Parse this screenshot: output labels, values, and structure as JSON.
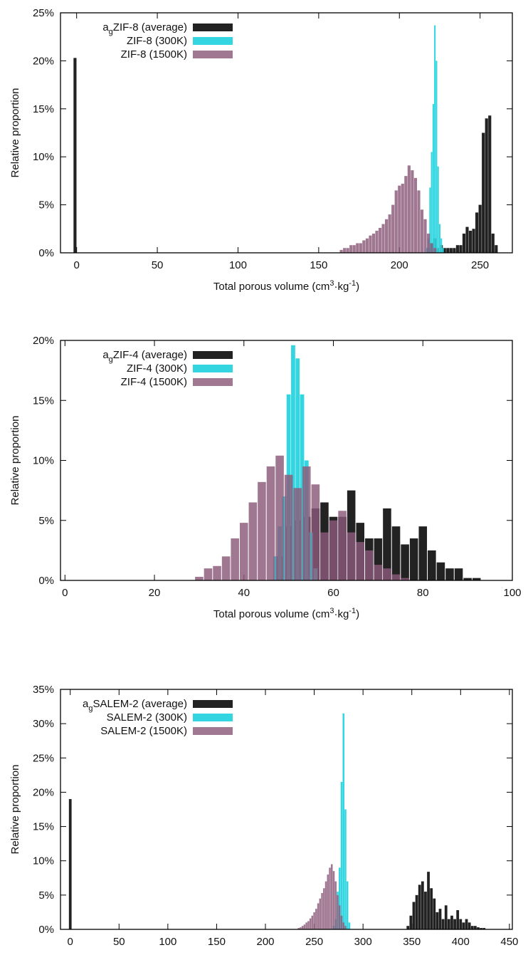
{
  "chart_data": [
    {
      "type": "bar",
      "x_label": "Total porous volume (cm3·kg-1)",
      "y_label": "Relative proportion",
      "xlim": [
        -10,
        270
      ],
      "ylim": [
        0,
        25
      ],
      "xticks": [
        0,
        50,
        100,
        150,
        200,
        250
      ],
      "yticks": [
        {
          "value": 0,
          "label": "0%"
        },
        {
          "value": 5,
          "label": "5%"
        },
        {
          "value": 10,
          "label": "10%"
        },
        {
          "value": 15,
          "label": "15%"
        },
        {
          "value": 20,
          "label": "20%"
        },
        {
          "value": 25,
          "label": "25%"
        }
      ],
      "legend": "upper left",
      "series": [
        {
          "name": "agZIF-8 (average)",
          "color": "#222222",
          "x": [
            -1,
            218,
            220,
            222,
            224,
            226,
            228,
            230,
            232,
            234,
            236,
            238,
            240,
            242,
            244,
            246,
            248,
            250,
            252,
            254,
            256,
            258,
            260
          ],
          "values": [
            20.3,
            0.5,
            1.0,
            1.5,
            0.5,
            0.8,
            0.5,
            0.5,
            0.5,
            0.5,
            0.8,
            0.8,
            2.0,
            2.7,
            2.3,
            2.5,
            4.2,
            5.0,
            12.5,
            14.0,
            14.3,
            2.0,
            0.8
          ]
        },
        {
          "name": "ZIF-8 (300K)",
          "color": "#33d6e0",
          "x": [
            217,
            218,
            219,
            220,
            221,
            222,
            223,
            224,
            225,
            226,
            227
          ],
          "values": [
            0.5,
            1.5,
            6.8,
            10.5,
            15.5,
            23.7,
            20.0,
            9.0,
            3.0,
            1.5,
            0.5
          ]
        },
        {
          "name": "ZIF-8 (1500K)",
          "color": "#8c5a7a",
          "x": [
            164,
            166,
            168,
            170,
            172,
            174,
            176,
            178,
            180,
            182,
            184,
            186,
            188,
            190,
            192,
            194,
            196,
            198,
            200,
            202,
            204,
            206,
            208,
            210,
            212,
            214,
            216,
            218,
            220,
            222
          ],
          "values": [
            0.3,
            0.5,
            0.5,
            0.8,
            0.8,
            1.0,
            1.0,
            1.3,
            1.5,
            1.8,
            2.0,
            2.3,
            2.6,
            3.0,
            3.5,
            4.0,
            5.0,
            6.5,
            7.0,
            7.2,
            8.0,
            9.1,
            8.6,
            7.8,
            6.5,
            4.5,
            3.5,
            2.0,
            1.0,
            0.5
          ]
        }
      ]
    },
    {
      "type": "bar",
      "x_label": "Total porous volume (cm3·kg-1)",
      "y_label": "Relative proportion",
      "xlim": [
        -1,
        100
      ],
      "ylim": [
        0,
        20
      ],
      "xticks": [
        0,
        20,
        40,
        60,
        80,
        100
      ],
      "yticks": [
        {
          "value": 0,
          "label": "0%"
        },
        {
          "value": 5,
          "label": "5%"
        },
        {
          "value": 10,
          "label": "10%"
        },
        {
          "value": 15,
          "label": "15%"
        },
        {
          "value": 20,
          "label": "20%"
        }
      ],
      "legend": "upper left",
      "series": [
        {
          "name": "agZIF-4 (average)",
          "color": "#222222",
          "x": [
            48,
            50,
            52,
            54,
            56,
            58,
            60,
            62,
            64,
            66,
            68,
            70,
            72,
            74,
            76,
            78,
            80,
            82,
            84,
            86,
            88,
            90,
            92
          ],
          "values": [
            2.0,
            4.5,
            5.0,
            5.3,
            6.0,
            6.5,
            5.3,
            5.3,
            7.5,
            4.8,
            3.5,
            3.5,
            6.0,
            4.5,
            3.0,
            3.5,
            4.5,
            2.5,
            1.5,
            1.0,
            1.0,
            0.2,
            0.2
          ]
        },
        {
          "name": "ZIF-4 (300K)",
          "color": "#33d6e0",
          "x": [
            47,
            48,
            49,
            50,
            51,
            52,
            53,
            54,
            55,
            56
          ],
          "values": [
            2.0,
            4.5,
            7.0,
            15.5,
            19.6,
            18.5,
            15.5,
            10.0,
            4.0,
            1.0
          ]
        },
        {
          "name": "ZIF-4 (1500K)",
          "color": "#8c5a7a",
          "x": [
            30,
            32,
            34,
            36,
            38,
            40,
            42,
            44,
            46,
            48,
            50,
            52,
            54,
            56,
            58,
            60,
            62,
            64,
            66,
            68,
            70,
            72,
            74,
            76
          ],
          "values": [
            0.3,
            1.0,
            1.2,
            2.0,
            3.5,
            4.8,
            6.5,
            8.2,
            9.5,
            10.4,
            8.8,
            7.7,
            9.5,
            8.0,
            4.0,
            5.0,
            5.8,
            4.0,
            3.2,
            2.5,
            1.3,
            1.0,
            0.5,
            0.2
          ]
        }
      ]
    },
    {
      "type": "bar",
      "x_label": "Total porous volume (cm3·kg-1)",
      "y_label": "Relative proportion",
      "xlim": [
        -10,
        453
      ],
      "ylim": [
        0,
        35
      ],
      "xticks": [
        0,
        50,
        100,
        150,
        200,
        250,
        300,
        350,
        400,
        450
      ],
      "yticks": [
        {
          "value": 0,
          "label": "0%"
        },
        {
          "value": 5,
          "label": "5%"
        },
        {
          "value": 10,
          "label": "10%"
        },
        {
          "value": 15,
          "label": "15%"
        },
        {
          "value": 20,
          "label": "20%"
        },
        {
          "value": 25,
          "label": "25%"
        },
        {
          "value": 30,
          "label": "30%"
        },
        {
          "value": 35,
          "label": "35%"
        }
      ],
      "legend": "upper left",
      "series": [
        {
          "name": "agSALEM-2 (average)",
          "color": "#222222",
          "x": [
            0,
            346,
            349,
            352,
            355,
            358,
            361,
            364,
            367,
            370,
            373,
            376,
            379,
            382,
            385,
            388,
            391,
            394,
            397,
            400,
            403,
            406,
            409,
            412,
            415,
            418,
            421,
            424
          ],
          "values": [
            19.0,
            0.5,
            2.0,
            4.0,
            5.0,
            6.5,
            7.0,
            5.5,
            8.4,
            6.0,
            4.5,
            2.5,
            3.0,
            1.5,
            3.5,
            1.5,
            2.0,
            1.5,
            2.8,
            1.5,
            1.0,
            1.5,
            1.0,
            0.5,
            0.5,
            0.3,
            0.2,
            0.2
          ]
        },
        {
          "name": "SALEM-2 (300K)",
          "color": "#33d6e0",
          "x": [
            270,
            272,
            274,
            276,
            278,
            280,
            282,
            284,
            286
          ],
          "values": [
            0.5,
            1.5,
            5.5,
            9.0,
            21.5,
            31.5,
            17.5,
            7.0,
            1.0
          ]
        },
        {
          "name": "SALEM-2 (1500K)",
          "color": "#8c5a7a",
          "x": [
            234,
            236,
            238,
            240,
            242,
            244,
            246,
            248,
            250,
            252,
            254,
            256,
            258,
            260,
            262,
            264,
            266,
            268,
            270,
            272,
            274,
            276,
            278,
            280,
            282
          ],
          "values": [
            0.2,
            0.3,
            0.5,
            0.7,
            1.0,
            1.2,
            1.6,
            2.0,
            2.5,
            3.0,
            3.8,
            4.5,
            5.3,
            6.0,
            7.0,
            8.0,
            9.0,
            9.5,
            8.5,
            7.0,
            5.0,
            3.5,
            2.0,
            1.0,
            0.5
          ]
        }
      ]
    }
  ]
}
